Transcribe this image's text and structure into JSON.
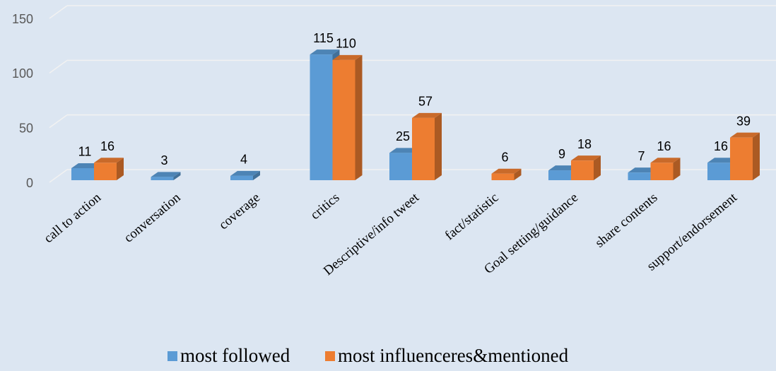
{
  "chart_data": {
    "type": "bar3d",
    "categories": [
      "call to action",
      "conversation",
      "coverage",
      "critics",
      "Descriptive/info tweet",
      "fact/statistic",
      "Goal setting/guidance",
      "share contents",
      "support/endorsement"
    ],
    "series": [
      {
        "name": "most followed",
        "color": "#5b9bd5",
        "values": [
          11,
          3,
          4,
          115,
          25,
          null,
          9,
          7,
          16
        ]
      },
      {
        "name": "most influenceres&mentioned",
        "color": "#ed7d31",
        "values": [
          16,
          null,
          null,
          110,
          57,
          6,
          18,
          16,
          39
        ]
      }
    ],
    "ylim": [
      0,
      150
    ],
    "yticks": [
      0,
      50,
      100,
      150
    ],
    "grid": true,
    "legend": "bottom"
  }
}
